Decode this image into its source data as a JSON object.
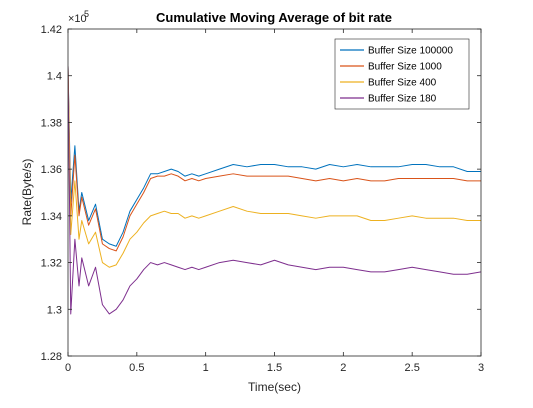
{
  "chart_data": {
    "type": "line",
    "title": "Cumulative Moving Average of bit rate",
    "xlabel": "Time(sec)",
    "ylabel": "Rate(Byte/s)",
    "y_exponent_base": "×10",
    "y_exponent_power": "5",
    "xlim": [
      0,
      3
    ],
    "ylim": [
      1.28,
      1.42
    ],
    "x_ticks": [
      0,
      0.5,
      1,
      1.5,
      2,
      2.5,
      3
    ],
    "x_tick_labels": [
      "0",
      "0.5",
      "1",
      "1.5",
      "2",
      "2.5",
      "3"
    ],
    "y_ticks": [
      1.28,
      1.3,
      1.32,
      1.34,
      1.36,
      1.38,
      1.4,
      1.42
    ],
    "y_tick_labels": [
      "1.28",
      "1.3",
      "1.32",
      "1.34",
      "1.36",
      "1.38",
      "1.4",
      "1.42"
    ],
    "grid": false,
    "legend_position": "top-right",
    "series": [
      {
        "name": "Buffer Size 100000",
        "color": "#0072BD",
        "x": [
          0,
          0.02,
          0.05,
          0.08,
          0.1,
          0.15,
          0.2,
          0.25,
          0.3,
          0.35,
          0.4,
          0.45,
          0.5,
          0.55,
          0.6,
          0.65,
          0.7,
          0.75,
          0.8,
          0.85,
          0.9,
          0.95,
          1.0,
          1.1,
          1.2,
          1.3,
          1.4,
          1.5,
          1.6,
          1.7,
          1.8,
          1.9,
          2.0,
          2.1,
          2.2,
          2.3,
          2.4,
          2.5,
          2.6,
          2.7,
          2.8,
          2.9,
          3.0
        ],
        "y": [
          1.404,
          1.346,
          1.37,
          1.342,
          1.35,
          1.338,
          1.345,
          1.33,
          1.328,
          1.327,
          1.333,
          1.342,
          1.347,
          1.352,
          1.358,
          1.358,
          1.359,
          1.36,
          1.359,
          1.357,
          1.358,
          1.357,
          1.358,
          1.36,
          1.362,
          1.361,
          1.362,
          1.362,
          1.361,
          1.361,
          1.36,
          1.362,
          1.361,
          1.362,
          1.361,
          1.361,
          1.361,
          1.362,
          1.362,
          1.361,
          1.361,
          1.359,
          1.359
        ]
      },
      {
        "name": "Buffer Size 1000",
        "color": "#D95319",
        "x": [
          0,
          0.02,
          0.05,
          0.08,
          0.1,
          0.15,
          0.2,
          0.25,
          0.3,
          0.35,
          0.4,
          0.45,
          0.5,
          0.55,
          0.6,
          0.65,
          0.7,
          0.75,
          0.8,
          0.85,
          0.9,
          0.95,
          1.0,
          1.1,
          1.2,
          1.3,
          1.4,
          1.5,
          1.6,
          1.7,
          1.8,
          1.9,
          2.0,
          2.1,
          2.2,
          2.3,
          2.4,
          2.5,
          2.6,
          2.7,
          2.8,
          2.9,
          3.0
        ],
        "y": [
          1.404,
          1.34,
          1.366,
          1.34,
          1.348,
          1.336,
          1.343,
          1.328,
          1.326,
          1.325,
          1.331,
          1.34,
          1.345,
          1.35,
          1.356,
          1.357,
          1.357,
          1.358,
          1.357,
          1.355,
          1.356,
          1.355,
          1.356,
          1.357,
          1.358,
          1.357,
          1.357,
          1.357,
          1.357,
          1.356,
          1.355,
          1.356,
          1.355,
          1.356,
          1.355,
          1.355,
          1.356,
          1.356,
          1.356,
          1.356,
          1.356,
          1.355,
          1.355
        ]
      },
      {
        "name": "Buffer Size 400",
        "color": "#EDB120",
        "x": [
          0,
          0.02,
          0.05,
          0.08,
          0.1,
          0.15,
          0.2,
          0.25,
          0.3,
          0.35,
          0.4,
          0.45,
          0.5,
          0.55,
          0.6,
          0.65,
          0.7,
          0.75,
          0.8,
          0.85,
          0.9,
          0.95,
          1.0,
          1.1,
          1.2,
          1.3,
          1.4,
          1.5,
          1.6,
          1.7,
          1.8,
          1.9,
          2.0,
          2.1,
          2.2,
          2.3,
          2.4,
          2.5,
          2.6,
          2.7,
          2.8,
          2.9,
          3.0
        ],
        "y": [
          1.404,
          1.332,
          1.355,
          1.33,
          1.338,
          1.328,
          1.333,
          1.32,
          1.318,
          1.319,
          1.324,
          1.33,
          1.333,
          1.337,
          1.34,
          1.341,
          1.342,
          1.341,
          1.341,
          1.339,
          1.34,
          1.339,
          1.34,
          1.342,
          1.344,
          1.342,
          1.341,
          1.341,
          1.341,
          1.34,
          1.339,
          1.34,
          1.34,
          1.34,
          1.338,
          1.338,
          1.339,
          1.34,
          1.339,
          1.339,
          1.339,
          1.338,
          1.338
        ]
      },
      {
        "name": "Buffer Size 180",
        "color": "#7E2F8E",
        "x": [
          0,
          0.02,
          0.05,
          0.08,
          0.1,
          0.15,
          0.2,
          0.25,
          0.3,
          0.35,
          0.4,
          0.45,
          0.5,
          0.55,
          0.6,
          0.65,
          0.7,
          0.75,
          0.8,
          0.85,
          0.9,
          0.95,
          1.0,
          1.1,
          1.2,
          1.3,
          1.4,
          1.5,
          1.6,
          1.7,
          1.8,
          1.9,
          2.0,
          2.1,
          2.2,
          2.3,
          2.4,
          2.5,
          2.6,
          2.7,
          2.8,
          2.9,
          3.0
        ],
        "y": [
          1.404,
          1.298,
          1.33,
          1.31,
          1.322,
          1.31,
          1.318,
          1.302,
          1.298,
          1.3,
          1.304,
          1.31,
          1.313,
          1.317,
          1.32,
          1.319,
          1.32,
          1.319,
          1.318,
          1.317,
          1.318,
          1.317,
          1.318,
          1.32,
          1.321,
          1.32,
          1.319,
          1.321,
          1.319,
          1.318,
          1.317,
          1.318,
          1.318,
          1.317,
          1.316,
          1.316,
          1.317,
          1.318,
          1.317,
          1.316,
          1.315,
          1.315,
          1.316
        ]
      }
    ]
  }
}
